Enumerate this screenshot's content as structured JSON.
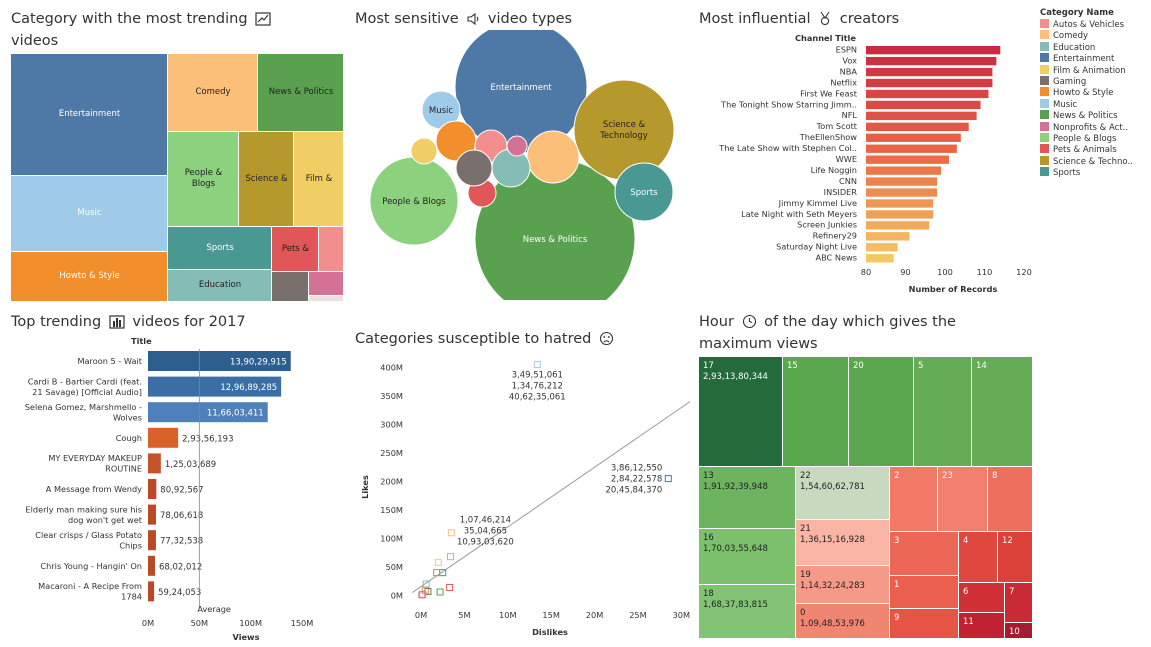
{
  "colors": {
    "Autos & Vehicles": "#f28e8b",
    "Comedy": "#fbbf7a",
    "Education": "#86bcb6",
    "Entertainment": "#4e79a7",
    "Film & Animation": "#f1ce63",
    "Gaming": "#79706e",
    "Howto & Style": "#f28e2b",
    "Music": "#a0cbe8",
    "News & Politics": "#59a14f",
    "Nonprofits & Activism": "#d37295",
    "People & Blogs": "#8cd17d",
    "Pets & Animals": "#e15759",
    "Science & Technology": "#b6992d",
    "Sports": "#499894"
  },
  "panels": {
    "treemap_title_1": "Category with the most trending",
    "treemap_title_2": "videos",
    "bubble_title_1": "Most sensitive",
    "bubble_title_2": "video types",
    "creators_title_1": "Most influential",
    "creators_title_2": "creators",
    "top_title_1": "Top trending",
    "top_title_2": "videos for 2017",
    "scatter_title": "Categories susceptible to hatred",
    "hour_title_1": "Hour",
    "hour_title_2": "of the day which gives the",
    "hour_title_3": "maximum views"
  },
  "legend": {
    "title": "Category Name",
    "items": [
      "Autos & Vehicles",
      "Comedy",
      "Education",
      "Entertainment",
      "Film & Animation",
      "Gaming",
      "Howto & Style",
      "Music",
      "News & Politics",
      "Nonprofits & Act..",
      "People & Blogs",
      "Pets & Animals",
      "Science & Techno..",
      "Sports"
    ],
    "color_keys": [
      "Autos & Vehicles",
      "Comedy",
      "Education",
      "Entertainment",
      "Film & Animation",
      "Gaming",
      "Howto & Style",
      "Music",
      "News & Politics",
      "Nonprofits & Activism",
      "People & Blogs",
      "Pets & Animals",
      "Science & Technology",
      "Sports"
    ]
  },
  "chart_data": [
    {
      "type": "treemap",
      "id": "category_treemap",
      "items": [
        {
          "category": "Entertainment",
          "label": "Entertainment"
        },
        {
          "category": "Music",
          "label": "Music"
        },
        {
          "category": "Howto & Style",
          "label": "Howto & Style"
        },
        {
          "category": "Comedy",
          "label": "Comedy"
        },
        {
          "category": "News & Politics",
          "label": "News & Politics"
        },
        {
          "category": "People & Blogs",
          "label": "People & Blogs"
        },
        {
          "category": "Science & Technology",
          "label": "Science &"
        },
        {
          "category": "Film & Animation",
          "label": "Film &"
        },
        {
          "category": "Sports",
          "label": "Sports"
        },
        {
          "category": "Pets & Animals",
          "label": "Pets &"
        },
        {
          "category": "Autos & Vehicles",
          "label": ""
        },
        {
          "category": "Education",
          "label": "Education"
        },
        {
          "category": "Gaming",
          "label": ""
        },
        {
          "category": "Nonprofits & Activism",
          "label": ""
        },
        {
          "category": "Other",
          "label": ""
        }
      ]
    },
    {
      "type": "bubble",
      "id": "sensitive_bubbles",
      "bubbles": [
        {
          "category": "Entertainment",
          "label": "Entertainment"
        },
        {
          "category": "News & Politics",
          "label": "News & Politics"
        },
        {
          "category": "People & Blogs",
          "label": "People & Blogs"
        },
        {
          "category": "Science & Technology",
          "label": "Science & Technology"
        },
        {
          "category": "Sports",
          "label": "Sports"
        },
        {
          "category": "Music",
          "label": "Music"
        },
        {
          "category": "Howto & Style",
          "label": ""
        },
        {
          "category": "Pets & Animals",
          "label": ""
        },
        {
          "category": "Autos & Vehicles",
          "label": ""
        },
        {
          "category": "Comedy",
          "label": ""
        },
        {
          "category": "Film & Animation",
          "label": ""
        },
        {
          "category": "Gaming",
          "label": ""
        },
        {
          "category": "Education",
          "label": ""
        },
        {
          "category": "Nonprofits & Activism",
          "label": ""
        }
      ]
    },
    {
      "type": "bar",
      "id": "influential_creators",
      "ylabel": "Channel Title",
      "xlabel": "Number of Records",
      "xlim": [
        80,
        120
      ],
      "xticks": [
        80,
        90,
        100,
        110,
        120
      ],
      "categories": [
        "ESPN",
        "Vox",
        "NBA",
        "Netflix",
        "First We Feast",
        "The Tonight Show Starring Jimm..",
        "NFL",
        "Tom Scott",
        "TheEllenShow",
        "The Late Show with Stephen Col..",
        "WWE",
        "Life Noggin",
        "CNN",
        "INSIDER",
        "Jimmy Kimmel Live",
        "Late Night with Seth Meyers",
        "Screen Junkies",
        "Refinery29",
        "Saturday Night Live",
        "ABC News"
      ],
      "values": [
        114,
        113,
        112,
        112,
        111,
        109,
        108,
        106,
        104,
        103,
        101,
        99,
        98,
        98,
        97,
        97,
        96,
        91,
        88,
        87
      ]
    },
    {
      "type": "bar",
      "id": "top_trending_2017",
      "ylabel": "Title",
      "xlabel": "Views",
      "xlim": [
        0,
        150000000
      ],
      "xticks": [
        "0M",
        "50M",
        "100M",
        "150M"
      ],
      "reference_line": {
        "label": "Average",
        "value": 50000000
      },
      "categories": [
        "Maroon 5 - Wait",
        "Cardi B - Bartier Cardi (feat. 21 Savage) [Official Audio]",
        "Selena Gomez, Marshmello - Wolves",
        "Cough",
        "MY EVERYDAY MAKEUP ROUTINE",
        "A Message from Wendy",
        "Elderly man making sure his dog won't get wet",
        "Clear crisps / Glass Potato Chips",
        "Chris Young - Hangin' On",
        "Macaroni - A Recipe From 1784"
      ],
      "category_lines": [
        [
          "Maroon 5 - Wait"
        ],
        [
          "Cardi B - Bartier Cardi (feat.",
          "21 Savage) [Official Audio]"
        ],
        [
          "Selena Gomez, Marshmello -",
          "Wolves"
        ],
        [
          "Cough"
        ],
        [
          "MY EVERYDAY MAKEUP",
          "ROUTINE"
        ],
        [
          "A Message from Wendy"
        ],
        [
          "Elderly man making sure his",
          "dog won't get wet"
        ],
        [
          "Clear crisps / Glass Potato",
          "Chips"
        ],
        [
          "Chris Young - Hangin' On"
        ],
        [
          "Macaroni - A Recipe From",
          "1784"
        ]
      ],
      "values": [
        139029915,
        129689285,
        116603411,
        29356193,
        12503689,
        8092567,
        7806618,
        7732538,
        6802012,
        5924053
      ],
      "value_labels": [
        "13,90,29,915",
        "12,96,89,285",
        "11,66,03,411",
        "2,93,56,193",
        "1,25,03,689",
        "80,92,567",
        "78,06,618",
        "77,32,538",
        "68,02,012",
        "59,24,053"
      ],
      "colors": [
        "#2d5f8e",
        "#3a6ea5",
        "#4f80b9",
        "#d9622b",
        "#c4542a",
        "#b84a27",
        "#b84a27",
        "#b84a27",
        "#b84a27",
        "#b84a27"
      ]
    },
    {
      "type": "scatter",
      "id": "hatred_scatter",
      "xlabel": "Dislikes",
      "ylabel": "Likes",
      "xlim": [
        -1500000,
        31000000
      ],
      "ylim": [
        -15000000,
        420000000
      ],
      "xticks": [
        "0M",
        "5M",
        "10M",
        "15M",
        "20M",
        "25M",
        "30M"
      ],
      "yticks": [
        "0M",
        "50M",
        "100M",
        "150M",
        "200M",
        "250M",
        "300M",
        "350M",
        "400M"
      ],
      "trend_line": {
        "x0": -1000000,
        "y0": 5000000,
        "x1": 31000000,
        "y1": 340000000
      },
      "points": [
        {
          "category": "Music",
          "x": 13400000,
          "y": 405000000,
          "label": [
            "3,49,51,061",
            "1,34,76,212",
            "40,62,35,061"
          ]
        },
        {
          "category": "Entertainment",
          "x": 28500000,
          "y": 205000000,
          "label": [
            "3,86,12,550",
            "2,84,22,578",
            "20,45,84,370"
          ]
        },
        {
          "category": "Comedy",
          "x": 3500000,
          "y": 110000000,
          "label": [
            "1,07,46,214",
            "35,04,665",
            "10,93,03,620"
          ]
        },
        {
          "category": "People & Blogs",
          "x": 3400000,
          "y": 68000000,
          "label": []
        },
        {
          "category": "Film & Animation",
          "x": 2000000,
          "y": 58000000,
          "label": []
        },
        {
          "category": "Sports",
          "x": 2500000,
          "y": 40000000,
          "label": []
        },
        {
          "category": "Science & Technology",
          "x": 1800000,
          "y": 40000000,
          "label": []
        },
        {
          "category": "Education",
          "x": 600000,
          "y": 20000000,
          "label": []
        },
        {
          "category": "Pets & Animals",
          "x": 3300000,
          "y": 14000000,
          "label": []
        },
        {
          "category": "Howto & Style",
          "x": 500000,
          "y": 9000000,
          "label": []
        },
        {
          "category": "Gaming",
          "x": 800000,
          "y": 7000000,
          "label": []
        },
        {
          "category": "News & Politics",
          "x": 2200000,
          "y": 6000000,
          "label": []
        },
        {
          "category": "Autos & Vehicles",
          "x": 200000,
          "y": 2000000,
          "label": []
        },
        {
          "category": "Nonprofits & Activism",
          "x": 100000,
          "y": 1000000,
          "label": []
        }
      ]
    },
    {
      "type": "treemap",
      "id": "hour_views",
      "cells": [
        {
          "hour": "17",
          "label": "2,93,13,80,344",
          "color": "#236b3b"
        },
        {
          "hour": "15",
          "label": "",
          "color": "#5aa84e"
        },
        {
          "hour": "20",
          "label": "",
          "color": "#5aa84e"
        },
        {
          "hour": "5",
          "label": "",
          "color": "#64ad56"
        },
        {
          "hour": "14",
          "label": "",
          "color": "#64ad56"
        },
        {
          "hour": "13",
          "label": "1,91,92,39,948",
          "color": "#6cb460"
        },
        {
          "hour": "16",
          "label": "1,70,03,55,648",
          "color": "#7cc06d"
        },
        {
          "hour": "18",
          "label": "1,68,37,83,815",
          "color": "#82c473"
        },
        {
          "hour": "22",
          "label": "1,54,60,62,781",
          "color": "#c8d9bf"
        },
        {
          "hour": "21",
          "label": "1,36,15,16,928",
          "color": "#f9b4a3"
        },
        {
          "hour": "19",
          "label": "1,14,32,24,283",
          "color": "#f59a88"
        },
        {
          "hour": "0",
          "label": "1,09,48,53,976",
          "color": "#f08672"
        },
        {
          "hour": "2",
          "label": "",
          "color": "#f17966"
        },
        {
          "hour": "23",
          "label": "",
          "color": "#f27e6c"
        },
        {
          "hour": "8",
          "label": "",
          "color": "#ee6f5d"
        },
        {
          "hour": "3",
          "label": "",
          "color": "#ec6755"
        },
        {
          "hour": "1",
          "label": "",
          "color": "#ea5f4e"
        },
        {
          "hour": "9",
          "label": "",
          "color": "#e65446"
        },
        {
          "hour": "4",
          "label": "",
          "color": "#e0483f"
        },
        {
          "hour": "12",
          "label": "",
          "color": "#db4039"
        },
        {
          "hour": "6",
          "label": "",
          "color": "#d13036"
        },
        {
          "hour": "7",
          "label": "",
          "color": "#c92a35"
        },
        {
          "hour": "11",
          "label": "",
          "color": "#c02233"
        },
        {
          "hour": "10",
          "label": "",
          "color": "#a51c30"
        }
      ]
    }
  ]
}
